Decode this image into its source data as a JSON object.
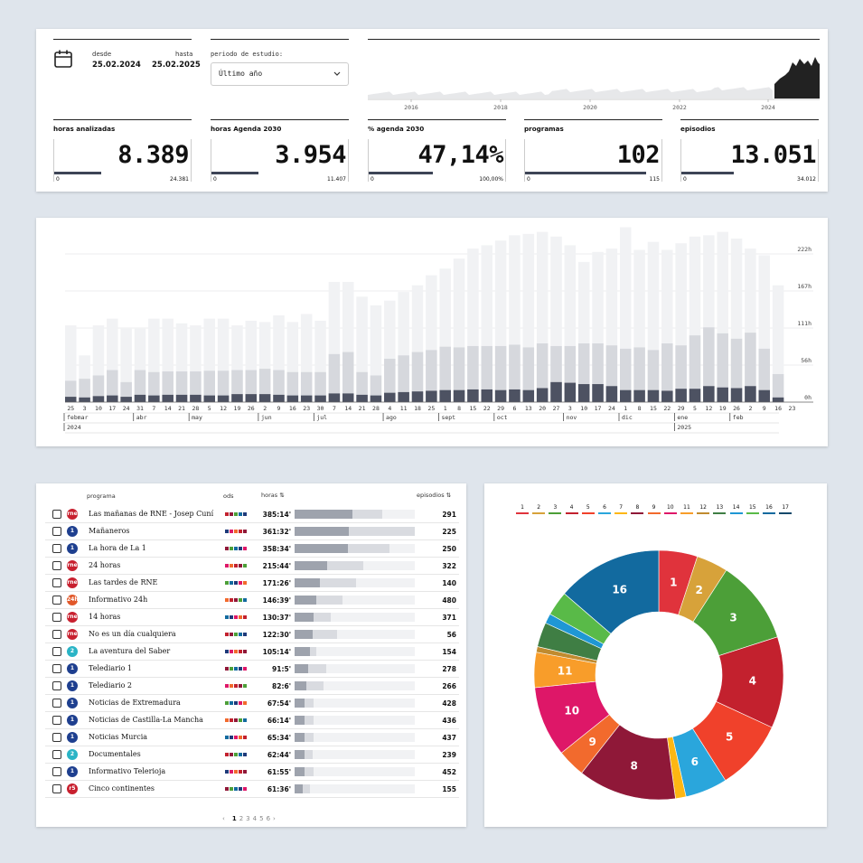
{
  "header": {
    "desde_label": "desde",
    "desde_value": "25.02.2024",
    "hasta_label": "hasta",
    "hasta_value": "25.02.2025",
    "periodo_label": "periodo de estudio:",
    "periodo_value": "Último año",
    "timeline_years": [
      "2016",
      "2018",
      "2020",
      "2022",
      "2024"
    ]
  },
  "kpis": [
    {
      "title": "horas analizadas",
      "value": "8.389",
      "min": "0",
      "max": "24.381",
      "fill": 0.344
    },
    {
      "title": "horas Agenda 2030",
      "value": "3.954",
      "min": "0",
      "max": "11.407",
      "fill": 0.347
    },
    {
      "title": "% agenda 2030",
      "value": "47,14%",
      "min": "0",
      "max": "100,00%",
      "fill": 0.471
    },
    {
      "title": "programas",
      "value": "102",
      "min": "0",
      "max": "115",
      "fill": 0.887
    },
    {
      "title": "episodios",
      "value": "13.051",
      "min": "0",
      "max": "34.012",
      "fill": 0.384
    }
  ],
  "weekly_chart": {
    "y_ticks": [
      "222h",
      "167h",
      "111h",
      "56h",
      "0h"
    ],
    "day_labels": [
      "25",
      "3",
      "10",
      "17",
      "24",
      "31",
      "7",
      "14",
      "21",
      "28",
      "5",
      "12",
      "19",
      "26",
      "2",
      "9",
      "16",
      "23",
      "30",
      "7",
      "14",
      "21",
      "28",
      "4",
      "11",
      "18",
      "25",
      "1",
      "8",
      "15",
      "22",
      "29",
      "6",
      "13",
      "20",
      "27",
      "3",
      "10",
      "17",
      "24",
      "1",
      "8",
      "15",
      "22",
      "29",
      "5",
      "12",
      "19",
      "26",
      "2",
      "9",
      "16",
      "23"
    ],
    "months": [
      "febmar",
      "abr",
      "may",
      "jun",
      "jul",
      "ago",
      "sept",
      "oct",
      "nov",
      "dic",
      "ene",
      "feb"
    ],
    "years": [
      "2024",
      "2025"
    ],
    "total": [
      115,
      70,
      115,
      125,
      110,
      110,
      125,
      125,
      118,
      115,
      125,
      125,
      115,
      122,
      120,
      130,
      120,
      132,
      122,
      180,
      180,
      158,
      145,
      152,
      165,
      175,
      190,
      200,
      215,
      230,
      235,
      242,
      250,
      252,
      255,
      248,
      235,
      210,
      225,
      230,
      262,
      228,
      240,
      228,
      238,
      248,
      250,
      255,
      245,
      230,
      220,
      175,
      0
    ],
    "analyzed": [
      32,
      35,
      40,
      48,
      30,
      48,
      45,
      46,
      46,
      46,
      47,
      47,
      48,
      48,
      50,
      48,
      45,
      45,
      45,
      72,
      75,
      45,
      40,
      65,
      70,
      75,
      78,
      83,
      82,
      84,
      84,
      84,
      86,
      82,
      88,
      84,
      84,
      88,
      88,
      85,
      80,
      82,
      78,
      88,
      85,
      100,
      112,
      103,
      95,
      104,
      80,
      42,
      0
    ],
    "agenda": [
      8,
      7,
      9,
      10,
      8,
      11,
      10,
      11,
      11,
      11,
      10,
      10,
      12,
      12,
      12,
      11,
      10,
      10,
      10,
      13,
      13,
      11,
      10,
      14,
      15,
      16,
      17,
      18,
      18,
      19,
      19,
      18,
      19,
      18,
      21,
      30,
      29,
      27,
      27,
      24,
      18,
      18,
      18,
      17,
      20,
      20,
      24,
      22,
      21,
      24,
      18,
      7,
      0
    ],
    "y_max": 222
  },
  "table": {
    "col_programa": "programa",
    "col_ods": "ods",
    "col_horas": "horas ⇅",
    "col_episodios": "episodios ⇅",
    "rows": [
      {
        "name": "Las mañanas de RNE - Josep Cuní",
        "logo": "rne",
        "hours": "385:14'",
        "episodes": "291",
        "f1": 0.48,
        "f2": 0.73
      },
      {
        "name": "Mañaneros",
        "logo": "1",
        "hours": "361:32'",
        "episodes": "225",
        "f1": 0.45,
        "f2": 1.0
      },
      {
        "name": "La hora de La 1",
        "logo": "1",
        "hours": "358:34'",
        "episodes": "250",
        "f1": 0.44,
        "f2": 0.79
      },
      {
        "name": "24 horas",
        "logo": "rne",
        "hours": "215:44'",
        "episodes": "322",
        "f1": 0.27,
        "f2": 0.57
      },
      {
        "name": "Las tardes de RNE",
        "logo": "rne",
        "hours": "171:26'",
        "episodes": "140",
        "f1": 0.21,
        "f2": 0.51
      },
      {
        "name": "Informativo 24h",
        "logo": "24h",
        "hours": "146:39'",
        "episodes": "480",
        "f1": 0.18,
        "f2": 0.4
      },
      {
        "name": "14 horas",
        "logo": "rne",
        "hours": "130:37'",
        "episodes": "371",
        "f1": 0.16,
        "f2": 0.3
      },
      {
        "name": "No es un día cualquiera",
        "logo": "rne",
        "hours": "122:30'",
        "episodes": "56",
        "f1": 0.15,
        "f2": 0.35
      },
      {
        "name": "La aventura del Saber",
        "logo": "2",
        "hours": "105:14'",
        "episodes": "154",
        "f1": 0.13,
        "f2": 0.18
      },
      {
        "name": "Telediario 1",
        "logo": "1",
        "hours": "91:5'",
        "episodes": "278",
        "f1": 0.11,
        "f2": 0.26
      },
      {
        "name": "Telediario 2",
        "logo": "1",
        "hours": "82:6'",
        "episodes": "266",
        "f1": 0.1,
        "f2": 0.24
      },
      {
        "name": "Noticias de Extremadura",
        "logo": "1",
        "hours": "67:54'",
        "episodes": "428",
        "f1": 0.08,
        "f2": 0.16
      },
      {
        "name": "Noticias de Castilla-La Mancha",
        "logo": "1",
        "hours": "66:14'",
        "episodes": "436",
        "f1": 0.08,
        "f2": 0.16
      },
      {
        "name": "Noticias Murcia",
        "logo": "1",
        "hours": "65:34'",
        "episodes": "437",
        "f1": 0.08,
        "f2": 0.16
      },
      {
        "name": "Documentales",
        "logo": "2",
        "hours": "62:44'",
        "episodes": "239",
        "f1": 0.08,
        "f2": 0.15
      },
      {
        "name": "Informativo Telerioja",
        "logo": "1",
        "hours": "61:55'",
        "episodes": "452",
        "f1": 0.08,
        "f2": 0.16
      },
      {
        "name": "Cinco continentes",
        "logo": "r5",
        "hours": "61:36'",
        "episodes": "155",
        "f1": 0.07,
        "f2": 0.13
      }
    ],
    "pagination": [
      "‹",
      "1",
      "2",
      "3",
      "4",
      "5",
      "6",
      "›"
    ]
  },
  "donut": {
    "legend": [
      "1",
      "2",
      "3",
      "4",
      "5",
      "6",
      "7",
      "8",
      "9",
      "10",
      "11",
      "12",
      "13",
      "14",
      "15",
      "16",
      "17"
    ],
    "colors": [
      "#e0333c",
      "#d7a23a",
      "#4c9f38",
      "#c3212e",
      "#f0412b",
      "#2aa6dc",
      "#fdb713",
      "#8f1838",
      "#f26a2d",
      "#de1768",
      "#f89d2a",
      "#c08b2f",
      "#3f7e44",
      "#1f97d4",
      "#59ba48",
      "#126a9f",
      "#14496b"
    ],
    "values": [
      5.5,
      4.5,
      12,
      13,
      10,
      6,
      1.5,
      14,
      4,
      10,
      5,
      0.8,
      3.5,
      1.4,
      3.5,
      15,
      0
    ],
    "labels_shown": [
      "1",
      "2",
      "3",
      "4",
      "5",
      "6",
      "",
      "8",
      "9",
      "10",
      "11",
      "",
      "",
      "",
      "",
      "16",
      ""
    ]
  }
}
